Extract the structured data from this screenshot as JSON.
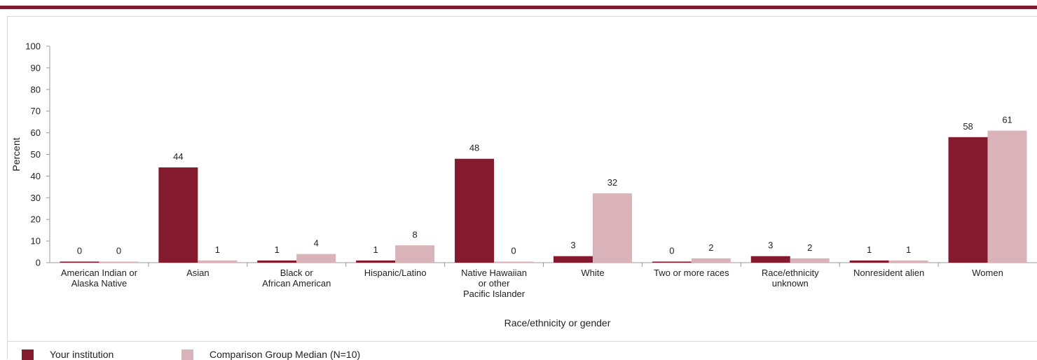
{
  "colors": {
    "accent": "#7d1a2e",
    "series_primary": "#841a2d",
    "series_comparison": "#d9b3b9",
    "axis": "#999999",
    "panel_border": "#d8d8d8"
  },
  "legend": {
    "items": [
      {
        "label": "Your institution",
        "color": "#841a2d"
      },
      {
        "label": "Comparison Group Median (N=10)",
        "color": "#d9b3b9"
      }
    ]
  },
  "chart_data": {
    "type": "bar",
    "title": "",
    "xlabel": "Race/ethnicity or gender",
    "ylabel": "Percent",
    "ylim": [
      0,
      100
    ],
    "yticks": [
      0,
      10,
      20,
      30,
      40,
      50,
      60,
      70,
      80,
      90,
      100
    ],
    "grid": false,
    "legend_position": "bottom-left",
    "categories": [
      [
        "American Indian or",
        "Alaska Native"
      ],
      [
        "Asian"
      ],
      [
        "Black or",
        "African American"
      ],
      [
        "Hispanic/Latino"
      ],
      [
        "Native Hawaiian",
        "or other",
        "Pacific Islander"
      ],
      [
        "White"
      ],
      [
        "Two or more races"
      ],
      [
        "Race/ethnicity",
        "unknown"
      ],
      [
        "Nonresident alien"
      ],
      [
        "Women"
      ]
    ],
    "series": [
      {
        "name": "Your institution",
        "values": [
          0,
          44,
          1,
          1,
          48,
          3,
          0,
          3,
          1,
          58
        ],
        "color": "#841a2d"
      },
      {
        "name": "Comparison Group Median (N=10)",
        "values": [
          0,
          1,
          4,
          8,
          0,
          32,
          2,
          2,
          1,
          61
        ],
        "color": "#d9b3b9"
      }
    ]
  }
}
